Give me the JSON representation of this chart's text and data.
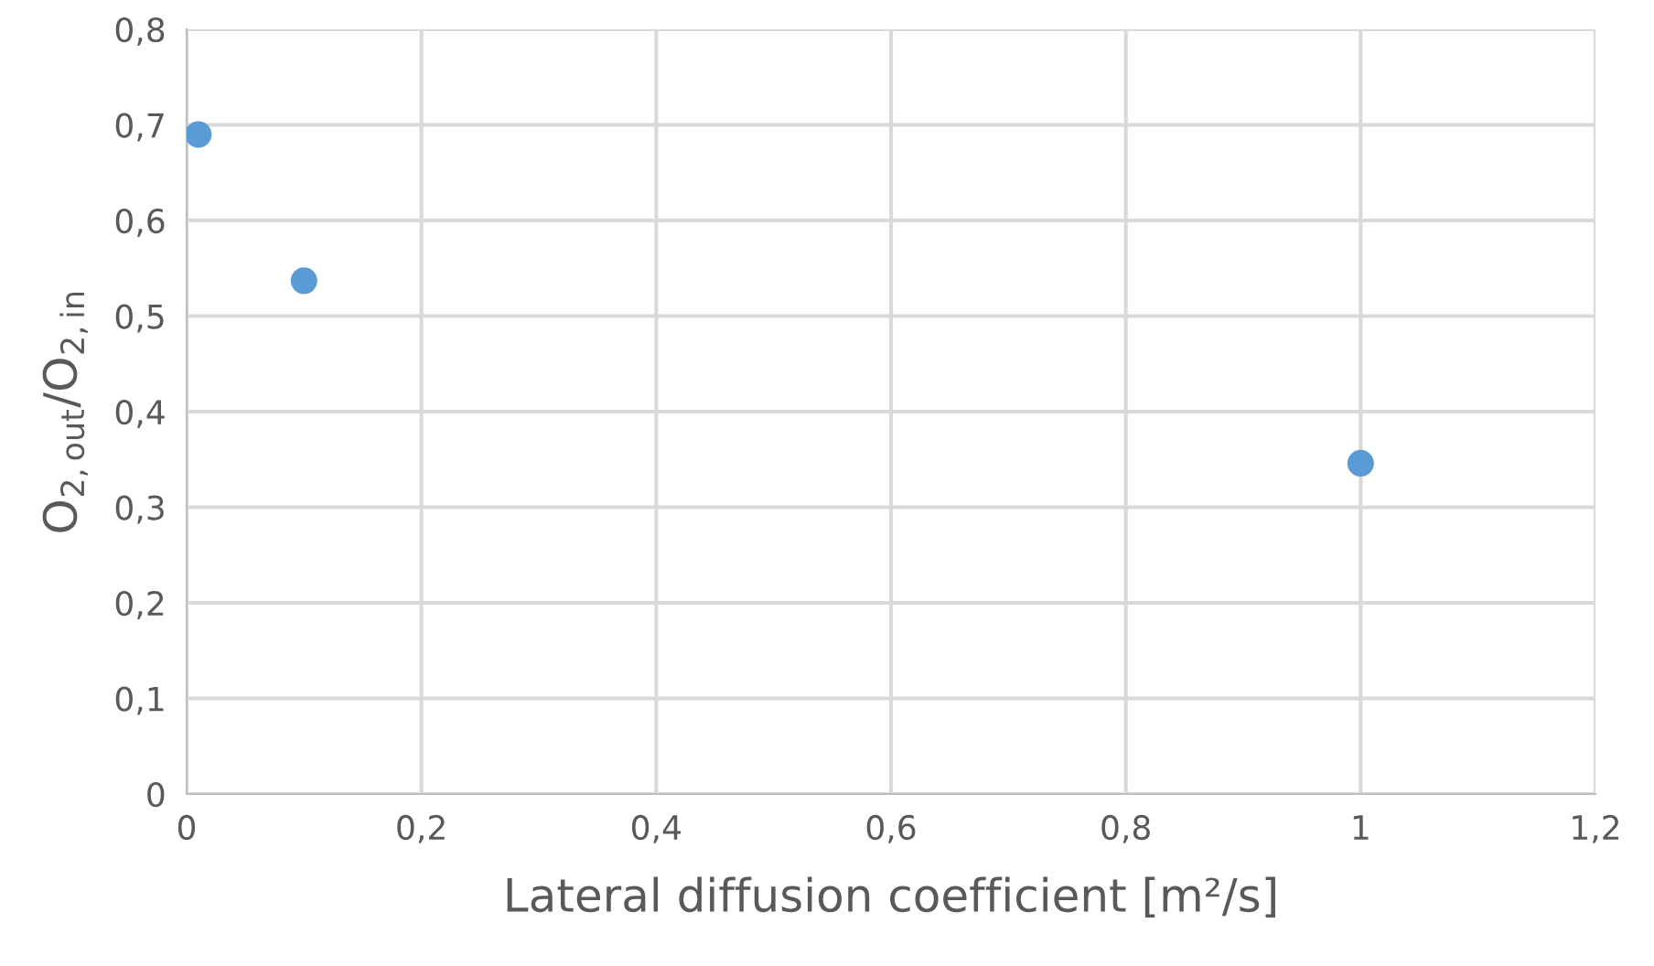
{
  "chart_data": {
    "type": "scatter",
    "xlabel": "Lateral diffusion coefficient [m²/s]",
    "ylabel": "O$_{2,out}$/O$_{2,in}$",
    "x": [
      0.01,
      0.1,
      1
    ],
    "series": [
      {
        "color": "#5b9bd5",
        "values": [
          0.69,
          0.537,
          0.346
        ]
      }
    ],
    "xlim": [
      0,
      1.2
    ],
    "xticks": [
      {
        "value": 0,
        "label": "0"
      },
      {
        "value": 0.2,
        "label": "0,2"
      },
      {
        "value": 0.4,
        "label": "0,4"
      },
      {
        "value": 0.6,
        "label": "0,6"
      },
      {
        "value": 0.8,
        "label": "0,8"
      },
      {
        "value": 1,
        "label": "1"
      },
      {
        "value": 1.2,
        "label": "1,2"
      }
    ],
    "ylim": [
      0,
      0.8
    ],
    "yticks": [
      {
        "value": 0,
        "label": "0"
      },
      {
        "value": 0.1,
        "label": "0,1"
      },
      {
        "value": 0.2,
        "label": "0,2"
      },
      {
        "value": 0.3,
        "label": "0,3"
      },
      {
        "value": 0.4,
        "label": "0,4"
      },
      {
        "value": 0.5,
        "label": "0,5"
      },
      {
        "value": 0.6,
        "label": "0,6"
      },
      {
        "value": 0.7,
        "label": "0,7"
      },
      {
        "value": 0.8,
        "label": "0,8"
      }
    ],
    "grid": true,
    "marker": "circle"
  }
}
